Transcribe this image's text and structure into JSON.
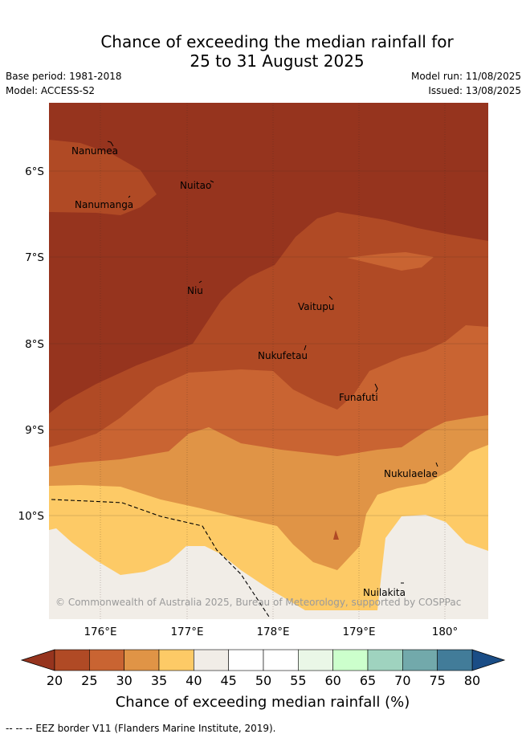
{
  "title_line1": "Chance of exceeding the median rainfall for",
  "title_line2": "25 to 31 August 2025",
  "base_period": "Base period: 1981-2018",
  "model": "Model: ACCESS-S2",
  "model_run": "Model run: 11/08/2025",
  "issued": "Issued: 13/08/2025",
  "latitude_labels": [
    "6°S",
    "7°S",
    "8°S",
    "9°S",
    "10°S"
  ],
  "longitude_labels": [
    "176°E",
    "177°E",
    "178°E",
    "179°E",
    "180°"
  ],
  "places": [
    "Nanumea",
    "Nuitao",
    "Nanumanga",
    "Niu",
    "Vaitupu",
    "Nukufetau",
    "Funafuti",
    "Nukulaelae",
    "Nuilakita"
  ],
  "copyright": "© Commonwealth of Australia 2025, Bureau of Meteorology, supported by COSPPac",
  "colorbar": {
    "ticks": [
      "20",
      "25",
      "30",
      "35",
      "40",
      "45",
      "50",
      "55",
      "60",
      "65",
      "70",
      "75",
      "80"
    ],
    "colors": [
      "#b04a25",
      "#c96432",
      "#e09446",
      "#fdca66",
      "#f1ede7",
      "#ffffff",
      "#ffffff",
      "#eaf7e7",
      "#ccffcc",
      "#9fd3bf",
      "#72a9ab",
      "#427c99"
    ],
    "under_color": "#96341e",
    "over_color": "#1a4d86",
    "label": "Chance of exceeding median rainfall (%)"
  },
  "footer": "-- -- -- EEZ border V11 (Flanders Marine Institute, 2019)."
}
